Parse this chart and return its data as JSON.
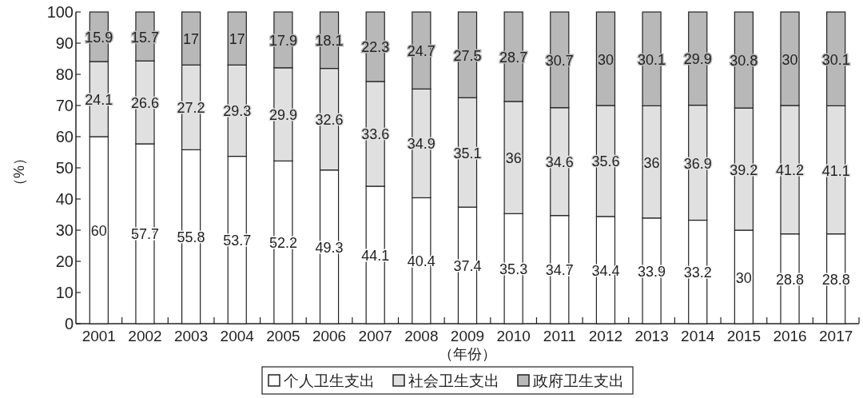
{
  "chart_data": {
    "type": "bar",
    "stacked": true,
    "xlabel": "（年份）",
    "ylabel": "（%）",
    "categories": [
      "2001",
      "2002",
      "2003",
      "2004",
      "2005",
      "2006",
      "2007",
      "2008",
      "2009",
      "2010",
      "2011",
      "2012",
      "2013",
      "2014",
      "2015",
      "2016",
      "2017"
    ],
    "series": [
      {
        "name": "个人卫生支出",
        "color": "#ffffff",
        "values": [
          60,
          57.7,
          55.8,
          53.7,
          52.2,
          49.3,
          44.1,
          40.4,
          37.4,
          35.3,
          34.7,
          34.4,
          33.9,
          33.2,
          30,
          28.8,
          28.8
        ]
      },
      {
        "name": "社会卫生支出",
        "color": "#e0e0e0",
        "values": [
          24.1,
          26.6,
          27.2,
          29.3,
          29.9,
          32.6,
          33.6,
          34.9,
          35.1,
          36,
          34.6,
          35.6,
          36,
          36.9,
          39.2,
          41.2,
          41.1
        ]
      },
      {
        "name": "政府卫生支出",
        "color": "#b8b8b8",
        "values": [
          15.9,
          15.7,
          17,
          17,
          17.9,
          18.1,
          22.3,
          24.7,
          27.5,
          28.7,
          30.7,
          30,
          30.1,
          29.9,
          30.8,
          30,
          30.1
        ]
      }
    ],
    "ylim": [
      0,
      100
    ],
    "yticks": [
      0,
      10,
      20,
      30,
      40,
      50,
      60,
      70,
      80,
      90,
      100
    ],
    "grid": false,
    "legend": "bottom",
    "data_labels": true
  }
}
